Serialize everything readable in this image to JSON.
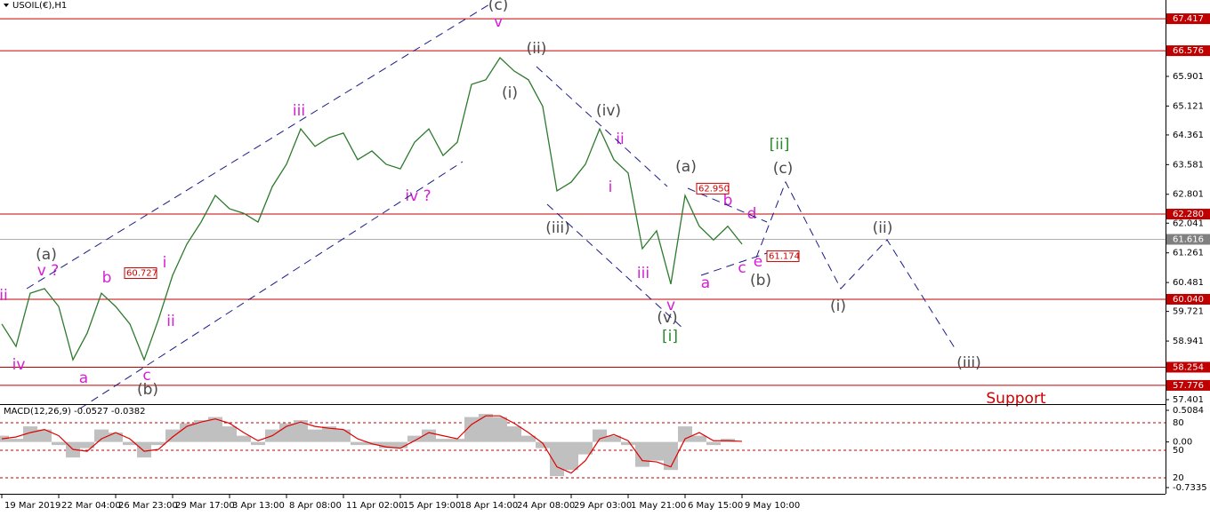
{
  "chart_data": [
    {
      "type": "line",
      "title": "USOIL(€),H1",
      "categories": [
        "19 Mar 2019",
        null,
        null,
        null,
        "22 Mar 04:00",
        null,
        null,
        null,
        "26 Mar 23:00",
        null,
        null,
        null,
        "29 Mar 17:00",
        null,
        null,
        null,
        "3 Apr 13:00",
        null,
        null,
        null,
        "8 Apr 08:00",
        null,
        null,
        null,
        "11 Apr 02:00",
        null,
        null,
        null,
        "15 Apr 19:00",
        null,
        null,
        null,
        "18 Apr 14:00",
        null,
        null,
        null,
        "24 Apr 08:00",
        null,
        null,
        null,
        "29 Apr 03:00",
        null,
        null,
        null,
        "1 May 21:00",
        null,
        null,
        null,
        "6 May 15:00",
        null,
        null,
        null,
        "9 May 10:00"
      ],
      "series": [
        {
          "color": "#2d7a2d",
          "values": [
            59.39,
            58.8,
            60.2,
            60.32,
            59.85,
            58.45,
            59.15,
            60.2,
            59.85,
            59.39,
            58.45,
            59.5,
            60.67,
            61.49,
            62.07,
            62.77,
            62.42,
            62.3,
            62.07,
            63.0,
            63.59,
            64.52,
            64.06,
            64.29,
            64.41,
            63.71,
            63.94,
            63.59,
            63.47,
            64.17,
            64.52,
            63.82,
            64.17,
            65.69,
            65.81,
            66.39,
            66.04,
            65.81,
            65.11,
            62.89,
            63.12,
            63.59,
            64.52,
            63.71,
            63.36,
            61.37,
            61.84,
            60.44,
            62.77,
            61.96,
            61.6,
            61.96,
            61.49
          ]
        }
      ],
      "ylim": [
        57.284,
        67.909
      ],
      "yticks": [
        65.901,
        65.121,
        64.361,
        63.581,
        62.801,
        62.041,
        61.261,
        60.481,
        59.721,
        58.941,
        57.401
      ],
      "levels": [
        67.417,
        66.576,
        {
          "value": 62.28,
          "label": "62.280"
        },
        {
          "value": 60.04,
          "label": "60.040"
        },
        58.254,
        57.776
      ],
      "level_color": "#c00000",
      "current_price": 61.616,
      "price_tags": [
        60.727,
        {
          "value": 62.95,
          "label": "62.950"
        },
        61.174
      ],
      "annotations": [
        "(c)",
        "v",
        "(ii)",
        "(i)",
        "iii",
        "(iv)",
        "ii",
        "i",
        "(iii)",
        "iv ?",
        "(a)",
        "b",
        "d",
        "[ii]",
        "(c)",
        "(ii)",
        "a",
        "c",
        "e",
        "(b)",
        "(i)",
        "iii",
        "v",
        "(v)",
        "[i]",
        "(iii)",
        "(a)",
        "v ?",
        "b",
        "i",
        "ii",
        "ii",
        "iv",
        "a",
        "c",
        "(b)",
        "Support"
      ]
    },
    {
      "type": "macd",
      "title": "MACD(12,26,9) -0.0527 -0.0382",
      "series": [
        {
          "color": "#c0c0c0",
          "values": [
            0.1,
            0.05,
            0.25,
            0.2,
            -0.05,
            -0.25,
            -0.1,
            0.2,
            0.15,
            -0.05,
            -0.25,
            -0.05,
            0.2,
            0.3,
            0.35,
            0.4,
            0.25,
            0.1,
            -0.05,
            0.2,
            0.3,
            0.35,
            0.2,
            0.25,
            0.2,
            -0.05,
            -0.05,
            -0.1,
            -0.1,
            0.1,
            0.2,
            0.05,
            0.05,
            0.4,
            0.45,
            0.4,
            0.25,
            0.1,
            -0.1,
            -0.55,
            -0.45,
            -0.2,
            0.2,
            0.1,
            -0.05,
            -0.4,
            -0.3,
            -0.45,
            0.25,
            0.1,
            -0.05,
            0.05,
            0.0
          ]
        },
        {
          "color": "#e00000",
          "values": [
            0.05,
            0.08,
            0.15,
            0.2,
            0.1,
            -0.12,
            -0.15,
            0.05,
            0.15,
            0.05,
            -0.15,
            -0.12,
            0.08,
            0.25,
            0.32,
            0.37,
            0.3,
            0.15,
            0.02,
            0.1,
            0.25,
            0.32,
            0.25,
            0.22,
            0.2,
            0.05,
            -0.03,
            -0.08,
            -0.1,
            0.02,
            0.15,
            0.1,
            0.05,
            0.28,
            0.42,
            0.42,
            0.3,
            0.15,
            -0.02,
            -0.4,
            -0.5,
            -0.3,
            0.05,
            0.12,
            0.02,
            -0.3,
            -0.32,
            -0.4,
            0.05,
            0.15,
            0.02,
            0.02,
            0.01
          ]
        }
      ],
      "ylim": [
        -0.7335,
        0.5084
      ],
      "yticks": [
        0.5084,
        {
          "value": 0,
          "label": "0.00"
        },
        -0.7335
      ],
      "y2lim": [
        6.4,
        97.4
      ],
      "y2ticks": [
        80,
        50,
        20
      ]
    }
  ]
}
